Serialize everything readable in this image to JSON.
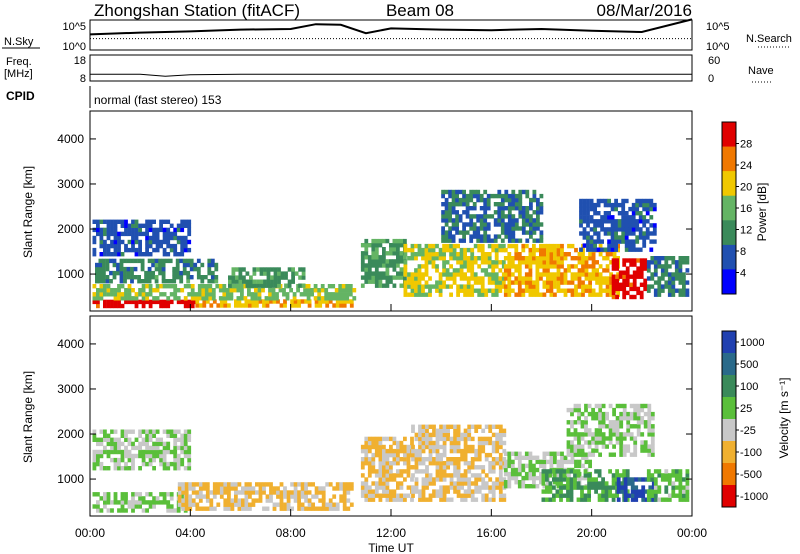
{
  "header": {
    "station": "Zhongshan Station (fitACF)",
    "beam": "Beam 08",
    "date": "08/Mar/2016"
  },
  "noise_panel": {
    "left_label": "N.Sky",
    "right_label": "N.Search",
    "left_ticks": [
      "10^5",
      "10^0"
    ],
    "right_ticks": [
      "10^5",
      "10^0"
    ]
  },
  "freq_panel": {
    "left_label_line1": "Freq.",
    "left_label_line2": "[MHz]",
    "left_ticks": [
      "18",
      "8"
    ],
    "right_label": "Nave",
    "right_ticks": [
      "60",
      "0"
    ]
  },
  "cpid": {
    "label": "CPID",
    "text": "normal (fast stereo) 153"
  },
  "x_axis": {
    "label": "Time UT",
    "ticks": [
      "00:00",
      "04:00",
      "08:00",
      "12:00",
      "16:00",
      "20:00",
      "00:00"
    ]
  },
  "power_panel": {
    "ylabel": "Slant Range [km]",
    "yticks": [
      "4000",
      "3000",
      "2000",
      "1000"
    ],
    "colorbar_label": "Power [dB]",
    "colorbar_ticks": [
      "28",
      "24",
      "20",
      "16",
      "12",
      "8",
      "4"
    ],
    "colors": [
      "#0000ff",
      "#2050b0",
      "#3a8a5a",
      "#64b464",
      "#f0c800",
      "#f07800",
      "#e00000"
    ]
  },
  "velocity_panel": {
    "ylabel": "Slant Range [km]",
    "yticks": [
      "4000",
      "3000",
      "2000",
      "1000"
    ],
    "colorbar_label": "Velocity [m s⁻¹]",
    "colorbar_ticks": [
      "1000",
      "500",
      "100",
      "25",
      "-25",
      "-100",
      "-500",
      "-1000"
    ],
    "colors": [
      "#2040b0",
      "#2a6a8a",
      "#3a8a5a",
      "#5abf3a",
      "#c8c8c8",
      "#f0b030",
      "#f07800",
      "#e00000"
    ]
  },
  "chart_data": [
    {
      "type": "line",
      "title": "Zhongshan Station (fitACF) Beam 08 08/Mar/2016",
      "panel": "noise",
      "series": [
        {
          "name": "N.Sky",
          "x": [
            0,
            2,
            4,
            6,
            8,
            9,
            10,
            11,
            12,
            14,
            16,
            18,
            20,
            22,
            24
          ],
          "values": [
            2.6,
            2.9,
            3.1,
            3.4,
            3.5,
            4.3,
            4.2,
            2.8,
            3.6,
            3.4,
            3.3,
            3.5,
            3.2,
            3.0,
            5.1
          ]
        },
        {
          "name": "N.Search",
          "x": [
            0,
            24
          ],
          "values": [
            1.9,
            1.9
          ]
        }
      ],
      "ylim": [
        0,
        5
      ]
    },
    {
      "type": "line",
      "panel": "frequency",
      "series": [
        {
          "name": "Freq.",
          "x": [
            0,
            2,
            3,
            4,
            6,
            8,
            12,
            16,
            20,
            24
          ],
          "values": [
            10.6,
            10.6,
            9.8,
            10.4,
            10.6,
            10.6,
            10.6,
            10.6,
            10.6,
            10.6
          ]
        },
        {
          "name": "Nave",
          "x": [
            0,
            24
          ],
          "values": [
            18,
            18
          ]
        }
      ],
      "ylim": [
        8,
        18
      ]
    },
    {
      "type": "heatmap",
      "panel": "power",
      "xlabel": "Time UT",
      "ylabel": "Slant Range [km]",
      "xlim": [
        0,
        24
      ],
      "ylim": [
        180,
        4620
      ],
      "value_label": "Power [dB]",
      "value_range": [
        0,
        32
      ],
      "regions": [
        {
          "t0": 0.1,
          "t1": 4.2,
          "r0": 250,
          "r1": 420,
          "v": 30
        },
        {
          "t0": 4.2,
          "t1": 10.5,
          "r0": 260,
          "r1": 400,
          "v": 22
        },
        {
          "t0": 0.1,
          "t1": 10.5,
          "r0": 420,
          "r1": 700,
          "v": 17
        },
        {
          "t0": 0.2,
          "t1": 5.0,
          "r0": 800,
          "r1": 1300,
          "v": 11
        },
        {
          "t0": 0.1,
          "t1": 4.0,
          "r0": 1400,
          "r1": 2200,
          "v": 7
        },
        {
          "t0": 5.5,
          "t1": 8.5,
          "r0": 700,
          "r1": 1100,
          "v": 13
        },
        {
          "t0": 10.8,
          "t1": 12.5,
          "r0": 700,
          "r1": 1700,
          "v": 13
        },
        {
          "t0": 12.5,
          "t1": 16.5,
          "r0": 500,
          "r1": 1600,
          "v": 19
        },
        {
          "t0": 16.5,
          "t1": 21.0,
          "r0": 500,
          "r1": 1600,
          "v": 22
        },
        {
          "t0": 20.8,
          "t1": 22.2,
          "r0": 450,
          "r1": 1300,
          "v": 30
        },
        {
          "t0": 14.0,
          "t1": 18.0,
          "r0": 1700,
          "r1": 2800,
          "v": 9
        },
        {
          "t0": 19.5,
          "t1": 22.5,
          "r0": 1500,
          "r1": 2600,
          "v": 7
        },
        {
          "t0": 22.2,
          "t1": 23.8,
          "r0": 500,
          "r1": 1400,
          "v": 10
        }
      ]
    },
    {
      "type": "heatmap",
      "panel": "velocity",
      "xlabel": "Time UT",
      "ylabel": "Slant Range [km]",
      "xlim": [
        0,
        24
      ],
      "ylim": [
        180,
        4620
      ],
      "value_label": "Velocity [m s⁻¹]",
      "value_range": [
        -1000,
        1000
      ],
      "regions": [
        {
          "t0": 0.1,
          "t1": 4.0,
          "r0": 260,
          "r1": 700,
          "v": 60
        },
        {
          "t0": 0.1,
          "t1": 4.0,
          "r0": 1200,
          "r1": 2100,
          "v": 0
        },
        {
          "t0": 3.5,
          "t1": 10.5,
          "r0": 300,
          "r1": 900,
          "v": -300
        },
        {
          "t0": 10.8,
          "t1": 12.8,
          "r0": 500,
          "r1": 1900,
          "v": -300
        },
        {
          "t0": 12.8,
          "t1": 16.5,
          "r0": 500,
          "r1": 2200,
          "v": -250
        },
        {
          "t0": 16.5,
          "t1": 20.0,
          "r0": 800,
          "r1": 1600,
          "v": 0
        },
        {
          "t0": 18.0,
          "t1": 21.5,
          "r0": 500,
          "r1": 1200,
          "v": 300
        },
        {
          "t0": 21.0,
          "t1": 22.5,
          "r0": 500,
          "r1": 1000,
          "v": 800
        },
        {
          "t0": 19.0,
          "t1": 22.5,
          "r0": 1500,
          "r1": 2600,
          "v": 0
        },
        {
          "t0": 22.2,
          "t1": 23.8,
          "r0": 500,
          "r1": 1200,
          "v": 150
        }
      ]
    }
  ]
}
